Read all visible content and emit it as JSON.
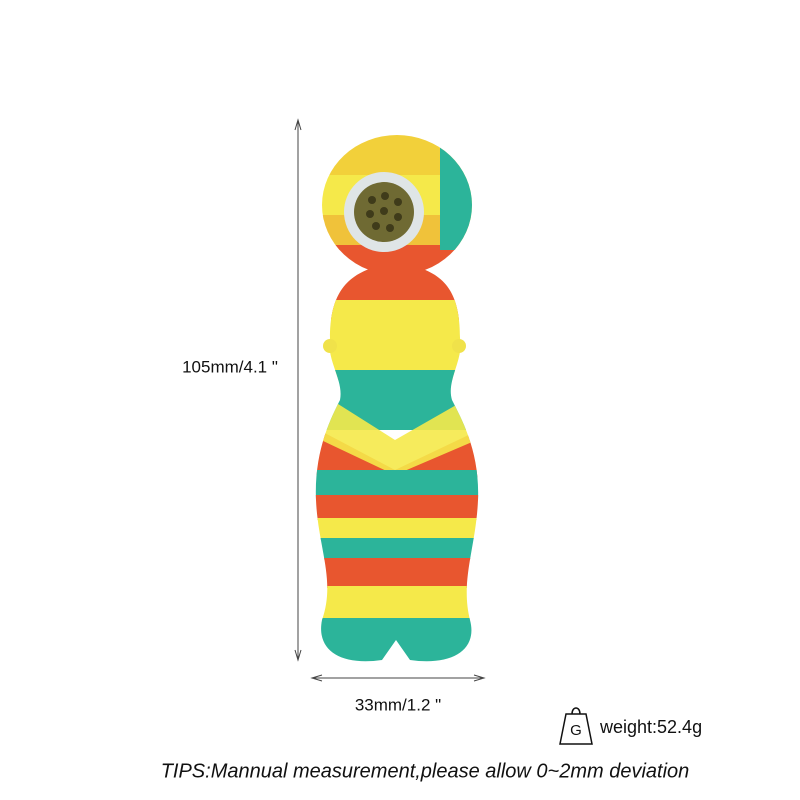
{
  "height_label": "105mm/4.1 \"",
  "width_label": "33mm/1.2 \"",
  "weight_icon": "G",
  "weight_label": "weight:52.4g",
  "tips": "TIPS:Mannual measurement,please allow 0~2mm deviation"
}
